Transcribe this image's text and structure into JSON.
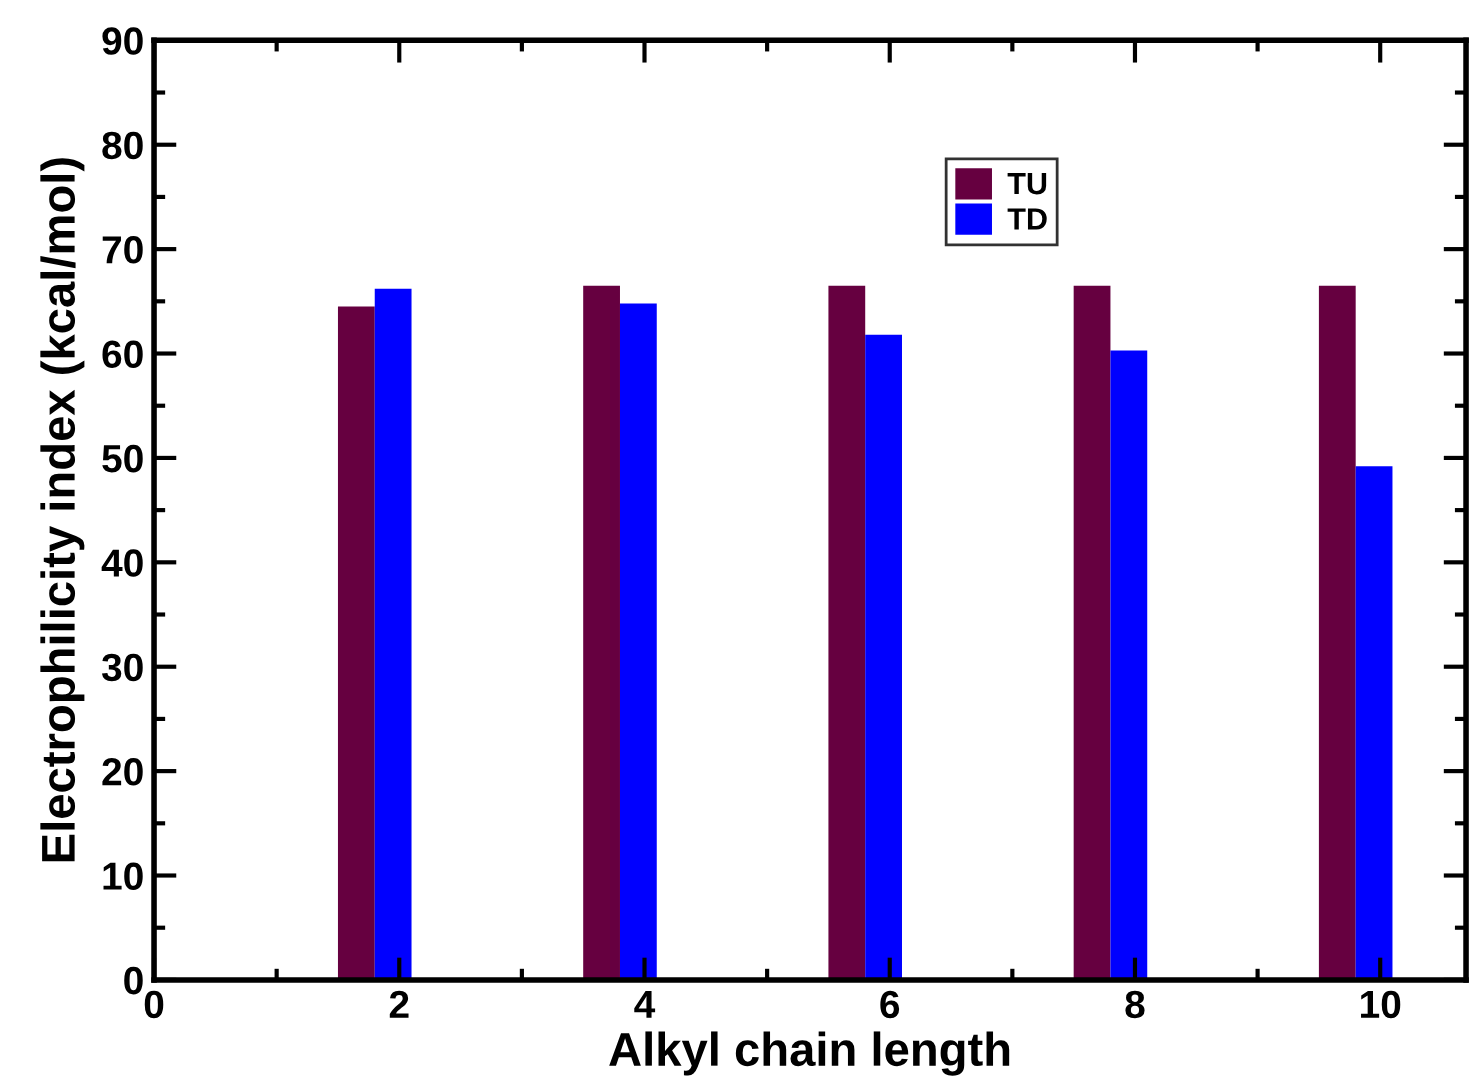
{
  "chart_data": {
    "type": "bar",
    "xlabel": "Alkyl chain length",
    "ylabel": "Electrophilicity index (kcal/mol)",
    "x": [
      2,
      4,
      6,
      8,
      10
    ],
    "series": [
      {
        "name": "TU",
        "color": "#660040",
        "values": [
          64.5,
          66.5,
          66.5,
          66.5,
          66.5
        ]
      },
      {
        "name": "TD",
        "color": "#0000ff",
        "values": [
          66.2,
          64.8,
          61.8,
          60.3,
          49.2
        ]
      }
    ],
    "xlim": [
      0,
      10.7
    ],
    "xticks": [
      0,
      {
        "value": 1,
        "label": null
      },
      2,
      {
        "value": 3,
        "label": null
      },
      4,
      {
        "value": 5,
        "label": null
      },
      6,
      {
        "value": 7,
        "label": null
      },
      8,
      {
        "value": 9,
        "label": null
      },
      10
    ],
    "ylim": [
      0,
      90
    ],
    "yticks": [
      0,
      {
        "value": 5,
        "label": null
      },
      10,
      {
        "value": 15,
        "label": null
      },
      20,
      {
        "value": 25,
        "label": null
      },
      30,
      {
        "value": 35,
        "label": null
      },
      40,
      {
        "value": 45,
        "label": null
      },
      50,
      {
        "value": 55,
        "label": null
      },
      60,
      {
        "value": 65,
        "label": null
      },
      70,
      {
        "value": 75,
        "label": null
      },
      80,
      {
        "value": 85,
        "label": null
      },
      90
    ],
    "grid": false,
    "legend": "top right"
  }
}
